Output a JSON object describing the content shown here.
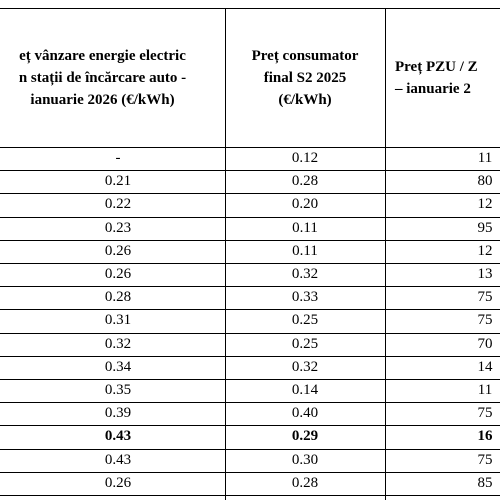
{
  "table": {
    "header": [
      [
        "eț vânzare energie electric",
        "n stații de încărcare auto -",
        "ianuarie 2026 (€/kWh)"
      ],
      [
        "Preț consumator",
        "final S2 2025",
        "(€/kWh)"
      ],
      [
        "Preț PZU / Z",
        "– ianuarie  2"
      ]
    ],
    "rows": [
      [
        "-",
        "0.12",
        "11"
      ],
      [
        "0.21",
        "0.28",
        "80"
      ],
      [
        "0.22",
        "0.20",
        "12"
      ],
      [
        "0.23",
        "0.11",
        "95"
      ],
      [
        "0.26",
        "0.11",
        "12"
      ],
      [
        "0.26",
        "0.32",
        "13"
      ],
      [
        "0.28",
        "0.33",
        "75"
      ],
      [
        "0.31",
        "0.25",
        "75"
      ],
      [
        "0.32",
        "0.25",
        "70"
      ],
      [
        "0.34",
        "0.32",
        "14"
      ],
      [
        "0.35",
        "0.14",
        "11"
      ],
      [
        "0.39",
        "0.40",
        "75"
      ],
      [
        "0.43",
        "0.29",
        "16"
      ],
      [
        "0.43",
        "0.30",
        "75"
      ],
      [
        "0.26",
        "0.28",
        "85"
      ]
    ]
  }
}
